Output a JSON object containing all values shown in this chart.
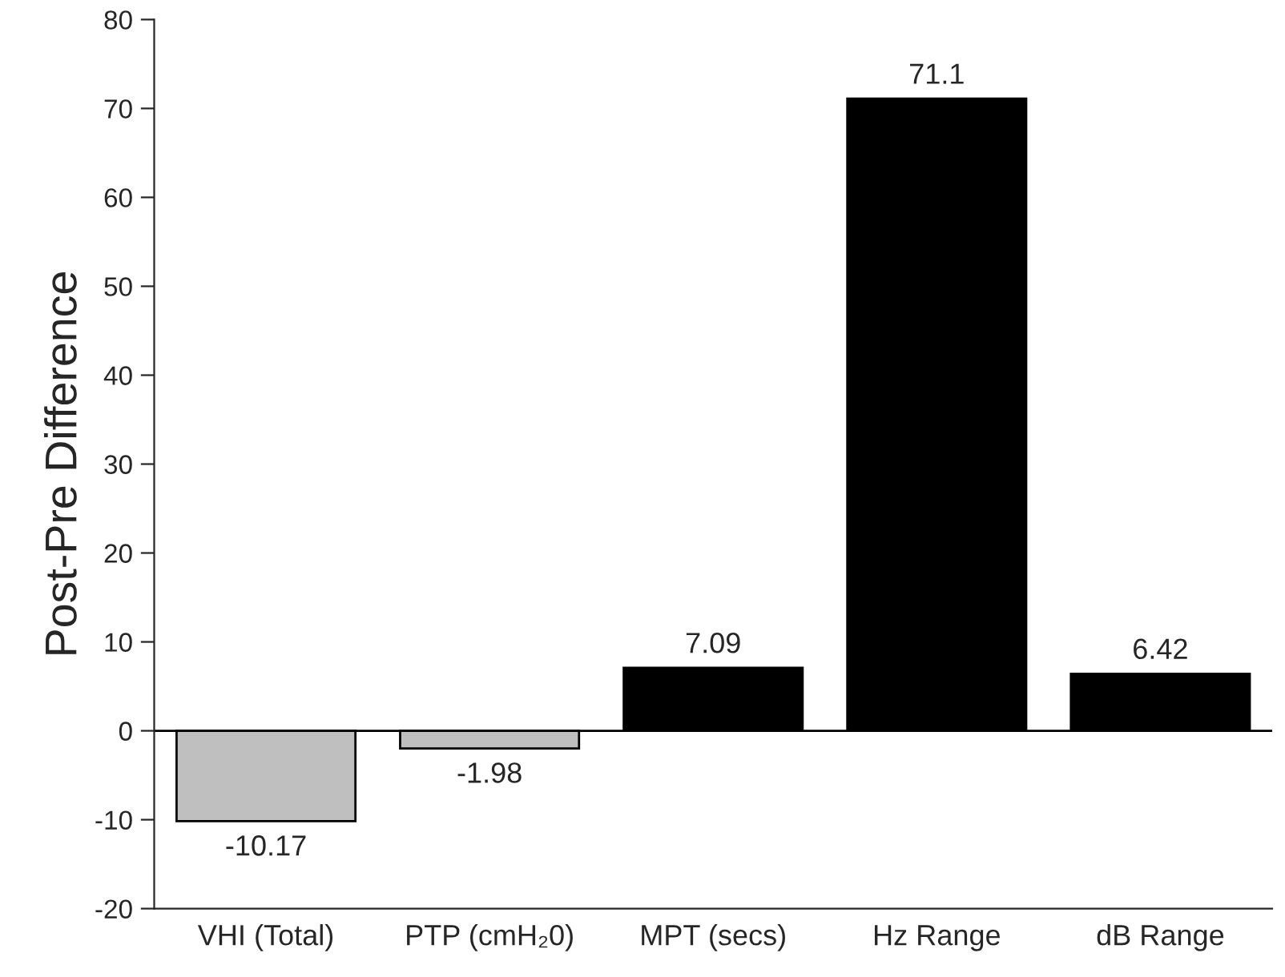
{
  "chart_data": {
    "type": "bar",
    "categories": [
      "VHI (Total)",
      "PTP (cmH₂0)",
      "MPT (secs)",
      "Hz Range",
      "dB Range"
    ],
    "values": [
      -10.17,
      -1.98,
      7.09,
      71.1,
      6.42
    ],
    "colors": [
      "#bfbfbf",
      "#bfbfbf",
      "#000000",
      "#000000",
      "#000000"
    ],
    "ylabel": "Post-Pre Difference",
    "ylim": [
      -20,
      80
    ],
    "yticks": [
      -20,
      -10,
      0,
      10,
      20,
      30,
      40,
      50,
      60,
      70,
      80
    ],
    "ref_lines": [
      {
        "axis": "y",
        "value": 0,
        "color": "#000000"
      }
    ],
    "data_labels": true,
    "grid": false,
    "legend": false
  }
}
